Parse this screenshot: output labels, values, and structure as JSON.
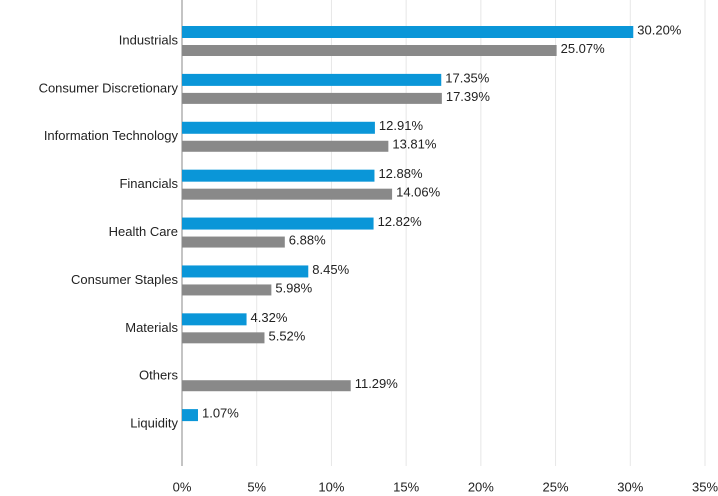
{
  "chart_data": {
    "type": "hbar",
    "categories": [
      "Industrials",
      "Consumer Discretionary",
      "Information Technology",
      "Financials",
      "Health Care",
      "Consumer Staples",
      "Materials",
      "Others",
      "Liquidity"
    ],
    "series": [
      {
        "color": "#0a96d8",
        "values": [
          30.2,
          17.35,
          12.91,
          12.88,
          12.82,
          8.45,
          4.32,
          null,
          1.07
        ],
        "value_labels": [
          "30.20%",
          "17.35%",
          "12.91%",
          "12.88%",
          "12.82%",
          "8.45%",
          "4.32%",
          null,
          "1.07%"
        ]
      },
      {
        "color": "#898989",
        "values": [
          25.07,
          17.39,
          13.81,
          14.06,
          6.88,
          5.98,
          5.52,
          11.29,
          null
        ],
        "value_labels": [
          "25.07%",
          "17.39%",
          "13.81%",
          "14.06%",
          "6.88%",
          "5.98%",
          "5.52%",
          "11.29%",
          null
        ]
      }
    ],
    "xlim": [
      0,
      35
    ],
    "xticks": [
      {
        "value": 0,
        "label": "0%"
      },
      {
        "value": 5,
        "label": "5%"
      },
      {
        "value": 10,
        "label": "10%"
      },
      {
        "value": 15,
        "label": "15%"
      },
      {
        "value": 20,
        "label": "20%"
      },
      {
        "value": 25,
        "label": "25%"
      },
      {
        "value": 30,
        "label": "30%"
      },
      {
        "value": 35,
        "label": "35%"
      }
    ],
    "grid": true
  }
}
